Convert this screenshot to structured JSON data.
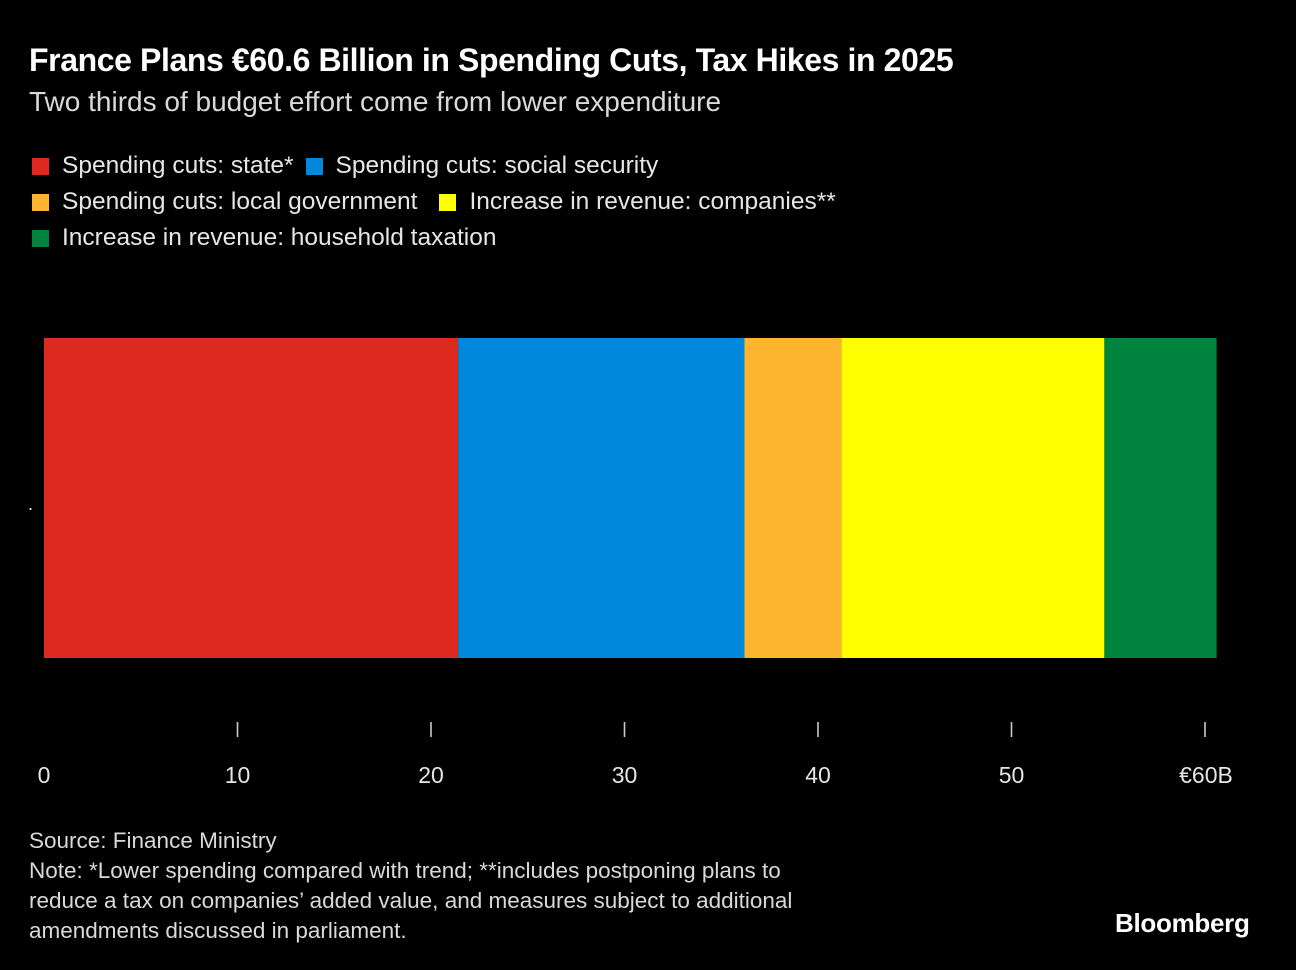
{
  "header": {
    "title": "France Plans €60.6 Billion in Spending Cuts, Tax Hikes in 2025",
    "subtitle": "Two thirds of budget effort come from lower expenditure"
  },
  "legend": {
    "rows": [
      [
        {
          "label": "Spending cuts: state*",
          "color": "#DD2A21"
        },
        {
          "label": "Spending cuts: social security",
          "color": "#0088DD"
        }
      ],
      [
        {
          "label": "Spending cuts: local government",
          "color": "#FDB52F"
        },
        {
          "label": "Increase in revenue: companies**",
          "color": "#FFFF00"
        }
      ],
      [
        {
          "label": "Increase in revenue: household taxation",
          "color": "#00843D"
        }
      ]
    ]
  },
  "chart_data": {
    "type": "bar",
    "orientation": "horizontal",
    "stacked": true,
    "title": "France Plans €60.6 Billion in Spending Cuts, Tax Hikes in 2025",
    "subtitle": "Two thirds of budget effort come from lower expenditure",
    "categories": [
      "."
    ],
    "series": [
      {
        "name": "Spending cuts: state*",
        "values": [
          21.4
        ],
        "color": "#DD2A21"
      },
      {
        "name": "Spending cuts: social security",
        "values": [
          14.8
        ],
        "color": "#0088DD"
      },
      {
        "name": "Spending cuts: local government",
        "values": [
          5.0
        ],
        "color": "#FDB52F"
      },
      {
        "name": "Increase in revenue: companies**",
        "values": [
          13.6
        ],
        "color": "#FFFF00"
      },
      {
        "name": "Increase in revenue: household taxation",
        "values": [
          5.8
        ],
        "color": "#00843D"
      }
    ],
    "total": 60.6,
    "xlabel": "",
    "ylabel": "",
    "xlim": [
      0,
      60
    ],
    "x_ticks": [
      0,
      10,
      20,
      30,
      40,
      50,
      60
    ],
    "x_tick_labels": [
      "0",
      "10",
      "20",
      "30",
      "40",
      "50",
      "€60B"
    ],
    "unit": "€ billion",
    "grid": false,
    "legend_position": "top-left"
  },
  "footer": {
    "source": "Source: Finance Ministry",
    "note_lines": [
      "Note: *Lower spending compared with trend; **includes postponing plans to",
      "reduce a tax on companies’ added value, and measures subject to additional",
      "amendments discussed in parliament."
    ],
    "brand": "Bloomberg"
  }
}
